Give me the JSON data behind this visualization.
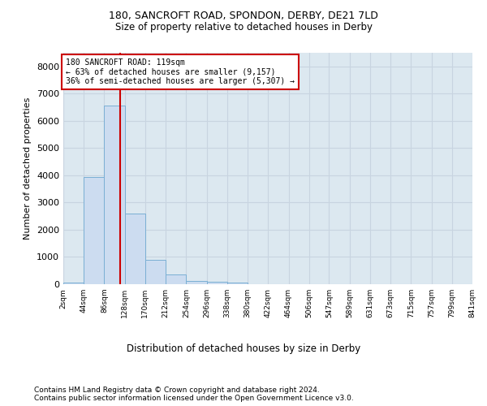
{
  "title1": "180, SANCROFT ROAD, SPONDON, DERBY, DE21 7LD",
  "title2": "Size of property relative to detached houses in Derby",
  "xlabel": "Distribution of detached houses by size in Derby",
  "ylabel": "Number of detached properties",
  "footnote": "Contains HM Land Registry data © Crown copyright and database right 2024.\nContains public sector information licensed under the Open Government Licence v3.0.",
  "bar_edges": [
    2,
    44,
    86,
    128,
    170,
    212,
    254,
    296,
    338,
    380,
    422,
    464,
    506,
    547,
    589,
    631,
    673,
    715,
    757,
    799,
    841
  ],
  "bar_heights": [
    50,
    3950,
    6550,
    2600,
    900,
    350,
    130,
    100,
    70,
    0,
    0,
    0,
    0,
    0,
    0,
    0,
    0,
    0,
    0,
    0
  ],
  "bar_color": "#ccdcf0",
  "bar_edgecolor": "#7aafd4",
  "property_size": 119,
  "vline_color": "#cc0000",
  "annotation_text": "180 SANCROFT ROAD: 119sqm\n← 63% of detached houses are smaller (9,157)\n36% of semi-detached houses are larger (5,307) →",
  "annotation_box_edgecolor": "#cc0000",
  "annotation_box_facecolor": "white",
  "ylim": [
    0,
    8500
  ],
  "yticks": [
    0,
    1000,
    2000,
    3000,
    4000,
    5000,
    6000,
    7000,
    8000
  ],
  "grid_color": "#c8d4e0",
  "background_color": "#dce8f0",
  "tick_labels": [
    "2sqm",
    "44sqm",
    "86sqm",
    "128sqm",
    "170sqm",
    "212sqm",
    "254sqm",
    "296sqm",
    "338sqm",
    "380sqm",
    "422sqm",
    "464sqm",
    "506sqm",
    "547sqm",
    "589sqm",
    "631sqm",
    "673sqm",
    "715sqm",
    "757sqm",
    "799sqm",
    "841sqm"
  ],
  "title1_fontsize": 9,
  "title2_fontsize": 8.5,
  "footnote_fontsize": 6.5,
  "ylabel_fontsize": 8,
  "xlabel_fontsize": 8.5
}
